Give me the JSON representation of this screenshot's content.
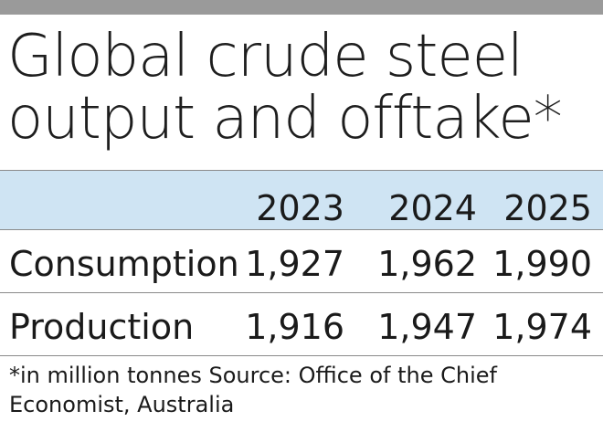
{
  "title_lines": [
    "Global crude steel",
    "output and offtake*"
  ],
  "footnote": "*in million tonnes Source: Office of the Chief Economist, Australia",
  "colors": {
    "top_bar": "#9a9a9a",
    "header_band": "#cfe4f3",
    "rule": "#8a8a8a",
    "text": "#1a1a1a"
  },
  "chart_data": {
    "type": "table",
    "title": "Global crude steel output and offtake*",
    "columns": [
      "2023",
      "2024",
      "2025"
    ],
    "rows": [
      {
        "label": "Consumption",
        "values": [
          "1,927",
          "1,962",
          "1,990"
        ]
      },
      {
        "label": "Production",
        "values": [
          "1,916",
          "1,947",
          "1,974"
        ]
      }
    ],
    "unit": "million tonnes"
  }
}
